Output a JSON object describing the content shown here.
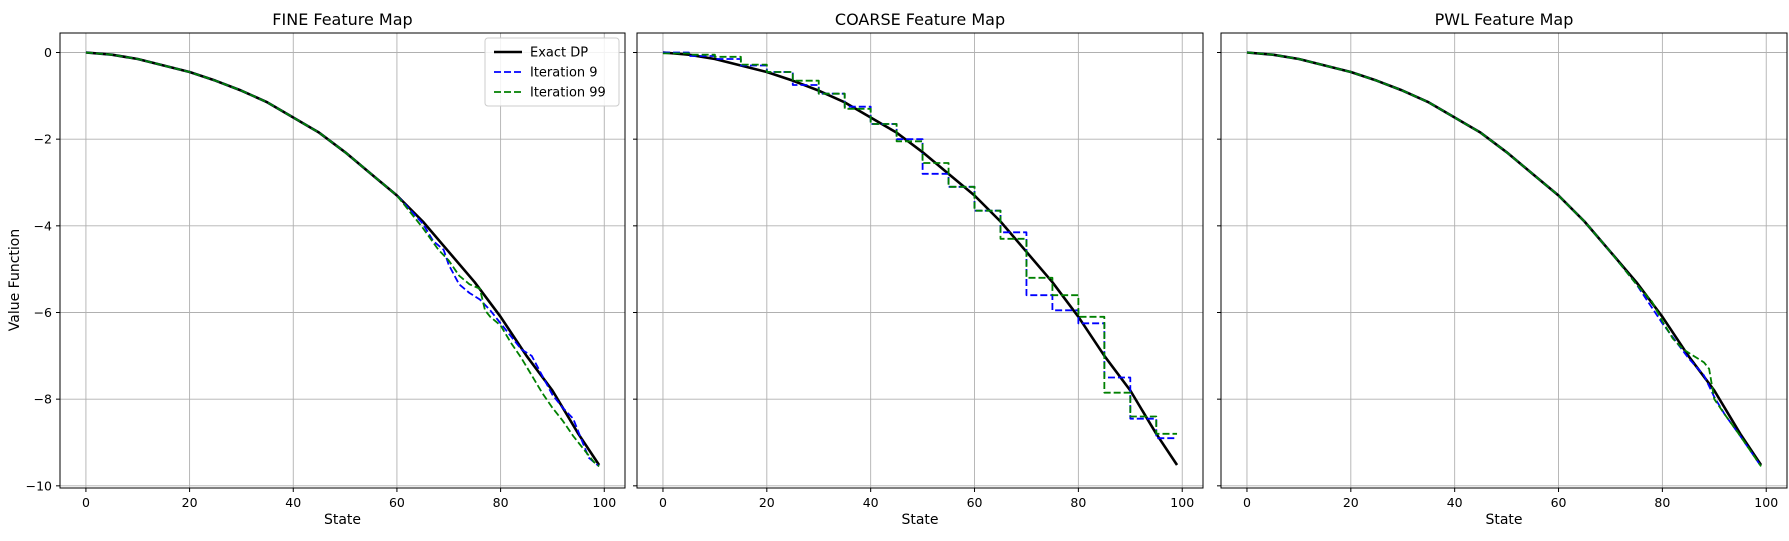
{
  "colors": {
    "exact": "#000000",
    "iter9": "#0000ff",
    "iter99": "#008000",
    "grid": "#b0b0b0",
    "axes": "#000000",
    "background": "#ffffff"
  },
  "figure": {
    "ylabel": "Value Function"
  },
  "chart_data": [
    {
      "type": "line",
      "title": "FINE Feature Map",
      "xlabel": "State",
      "ylabel": "Value Function",
      "xlim": [
        -5,
        104
      ],
      "ylim": [
        -10.05,
        0.45
      ],
      "xticks": [
        0,
        20,
        40,
        60,
        80,
        100
      ],
      "xtick_labels": [
        "0",
        "20",
        "40",
        "60",
        "80",
        "100"
      ],
      "yticks": [
        0,
        -2,
        -4,
        -6,
        -8,
        -10
      ],
      "ytick_labels": [
        "0",
        "−2",
        "−4",
        "−6",
        "−8",
        "−10"
      ],
      "show_yticklabels": true,
      "grid": true,
      "legend": {
        "show": true,
        "position": "top-right",
        "entries": [
          "Exact DP",
          "Iteration 9",
          "Iteration 99"
        ]
      },
      "series": [
        {
          "name": "Exact DP",
          "style": "solid",
          "x": [
            0,
            5,
            10,
            15,
            20,
            25,
            30,
            35,
            40,
            45,
            50,
            55,
            60,
            65,
            70,
            75,
            80,
            85,
            90,
            95,
            99
          ],
          "y": [
            0,
            -0.05,
            -0.15,
            -0.3,
            -0.45,
            -0.65,
            -0.88,
            -1.15,
            -1.5,
            -1.85,
            -2.3,
            -2.8,
            -3.3,
            -3.9,
            -4.6,
            -5.3,
            -6.1,
            -7.0,
            -7.8,
            -8.8,
            -9.52
          ]
        },
        {
          "name": "Iteration 9",
          "style": "dashed",
          "x": [
            0,
            5,
            10,
            15,
            20,
            25,
            30,
            35,
            40,
            45,
            50,
            55,
            60,
            65,
            67,
            69,
            70,
            72,
            74,
            76,
            78,
            80,
            82,
            84,
            86,
            88,
            90,
            92,
            94,
            96,
            97,
            98,
            99
          ],
          "y": [
            0,
            -0.05,
            -0.15,
            -0.3,
            -0.45,
            -0.65,
            -0.88,
            -1.15,
            -1.5,
            -1.85,
            -2.3,
            -2.8,
            -3.3,
            -3.95,
            -4.35,
            -4.55,
            -4.9,
            -5.35,
            -5.55,
            -5.7,
            -5.95,
            -6.25,
            -6.55,
            -6.85,
            -7.0,
            -7.45,
            -7.9,
            -8.2,
            -8.45,
            -9.05,
            -9.35,
            -9.45,
            -9.55
          ]
        },
        {
          "name": "Iteration 99",
          "style": "dashed",
          "x": [
            0,
            5,
            10,
            15,
            20,
            25,
            30,
            35,
            40,
            45,
            50,
            55,
            60,
            65,
            68,
            70,
            72,
            74,
            76,
            77,
            78,
            80,
            82,
            84,
            86,
            88,
            90,
            92,
            94,
            96,
            97,
            98,
            99
          ],
          "y": [
            0,
            -0.05,
            -0.15,
            -0.3,
            -0.45,
            -0.65,
            -0.88,
            -1.15,
            -1.5,
            -1.85,
            -2.3,
            -2.8,
            -3.3,
            -4.05,
            -4.55,
            -4.8,
            -5.15,
            -5.35,
            -5.45,
            -5.95,
            -6.1,
            -6.3,
            -6.7,
            -7.05,
            -7.45,
            -7.85,
            -8.2,
            -8.5,
            -8.85,
            -9.15,
            -9.3,
            -9.45,
            -9.55
          ]
        }
      ]
    },
    {
      "type": "line",
      "title": "COARSE Feature Map",
      "xlabel": "State",
      "ylabel": "",
      "xlim": [
        -5,
        104
      ],
      "ylim": [
        -10.05,
        0.45
      ],
      "xticks": [
        0,
        20,
        40,
        60,
        80,
        100
      ],
      "xtick_labels": [
        "0",
        "20",
        "40",
        "60",
        "80",
        "100"
      ],
      "yticks": [
        0,
        -2,
        -4,
        -6,
        -8,
        -10
      ],
      "ytick_labels": [
        "",
        "",
        "",
        "",
        "",
        ""
      ],
      "show_yticklabels": false,
      "grid": true,
      "legend": {
        "show": false,
        "position": "top-right",
        "entries": []
      },
      "series": [
        {
          "name": "Exact DP",
          "style": "solid",
          "x": [
            0,
            5,
            10,
            15,
            20,
            25,
            30,
            35,
            40,
            45,
            50,
            55,
            60,
            65,
            70,
            75,
            80,
            85,
            90,
            95,
            99
          ],
          "y": [
            0,
            -0.05,
            -0.15,
            -0.3,
            -0.45,
            -0.65,
            -0.88,
            -1.15,
            -1.5,
            -1.85,
            -2.3,
            -2.8,
            -3.3,
            -3.9,
            -4.6,
            -5.3,
            -6.1,
            -7.0,
            -7.8,
            -8.8,
            -9.52
          ]
        },
        {
          "name": "Iteration 9",
          "style": "dashed",
          "x": [
            0,
            5,
            5,
            10,
            10,
            15,
            15,
            20,
            20,
            25,
            25,
            30,
            30,
            35,
            35,
            40,
            40,
            45,
            45,
            50,
            50,
            55,
            55,
            60,
            60,
            65,
            65,
            70,
            70,
            75,
            75,
            80,
            80,
            85,
            85,
            90,
            90,
            95,
            95,
            99
          ],
          "y": [
            0,
            0,
            -0.08,
            -0.08,
            -0.15,
            -0.15,
            -0.3,
            -0.3,
            -0.45,
            -0.45,
            -0.75,
            -0.75,
            -0.95,
            -0.95,
            -1.25,
            -1.25,
            -1.65,
            -1.65,
            -2.0,
            -2.0,
            -2.8,
            -2.8,
            -3.1,
            -3.1,
            -3.65,
            -3.65,
            -4.15,
            -4.15,
            -5.6,
            -5.6,
            -5.95,
            -5.95,
            -6.25,
            -6.25,
            -7.5,
            -7.5,
            -8.45,
            -8.45,
            -8.9,
            -8.9
          ]
        },
        {
          "name": "Iteration 99",
          "style": "dashed",
          "x": [
            0,
            5,
            5,
            10,
            10,
            15,
            15,
            20,
            20,
            25,
            25,
            30,
            30,
            35,
            35,
            40,
            40,
            45,
            45,
            50,
            50,
            55,
            55,
            60,
            60,
            65,
            65,
            70,
            70,
            75,
            75,
            80,
            80,
            85,
            85,
            90,
            90,
            95,
            95,
            99
          ],
          "y": [
            -0.02,
            -0.02,
            -0.05,
            -0.05,
            -0.1,
            -0.1,
            -0.28,
            -0.28,
            -0.45,
            -0.45,
            -0.65,
            -0.65,
            -0.95,
            -0.95,
            -1.3,
            -1.3,
            -1.65,
            -1.65,
            -2.05,
            -2.05,
            -2.55,
            -2.55,
            -3.1,
            -3.1,
            -3.65,
            -3.65,
            -4.3,
            -4.3,
            -5.2,
            -5.2,
            -5.6,
            -5.6,
            -6.1,
            -6.1,
            -7.85,
            -7.85,
            -8.4,
            -8.4,
            -8.8,
            -8.8
          ]
        }
      ]
    },
    {
      "type": "line",
      "title": "PWL Feature Map",
      "xlabel": "State",
      "ylabel": "",
      "xlim": [
        -5,
        104
      ],
      "ylim": [
        -10.05,
        0.45
      ],
      "xticks": [
        0,
        20,
        40,
        60,
        80,
        100
      ],
      "xtick_labels": [
        "0",
        "20",
        "40",
        "60",
        "80",
        "100"
      ],
      "yticks": [
        0,
        -2,
        -4,
        -6,
        -8,
        -10
      ],
      "ytick_labels": [
        "",
        "",
        "",
        "",
        "",
        ""
      ],
      "show_yticklabels": false,
      "grid": true,
      "legend": {
        "show": false,
        "position": "top-right",
        "entries": []
      },
      "series": [
        {
          "name": "Exact DP",
          "style": "solid",
          "x": [
            0,
            5,
            10,
            15,
            20,
            25,
            30,
            35,
            40,
            45,
            50,
            55,
            60,
            65,
            70,
            75,
            80,
            85,
            90,
            95,
            99
          ],
          "y": [
            0,
            -0.05,
            -0.15,
            -0.3,
            -0.45,
            -0.65,
            -0.88,
            -1.15,
            -1.5,
            -1.85,
            -2.3,
            -2.8,
            -3.3,
            -3.9,
            -4.6,
            -5.3,
            -6.1,
            -7.0,
            -7.8,
            -8.8,
            -9.52
          ]
        },
        {
          "name": "Iteration 9",
          "style": "dashed",
          "x": [
            0,
            5,
            10,
            15,
            20,
            25,
            30,
            35,
            40,
            45,
            50,
            55,
            60,
            65,
            70,
            75,
            80,
            85,
            88,
            90,
            92,
            95,
            97,
            99
          ],
          "y": [
            0,
            -0.05,
            -0.15,
            -0.3,
            -0.45,
            -0.65,
            -0.88,
            -1.15,
            -1.5,
            -1.85,
            -2.3,
            -2.8,
            -3.3,
            -3.9,
            -4.6,
            -5.35,
            -6.25,
            -7.05,
            -7.45,
            -7.95,
            -8.35,
            -8.85,
            -9.2,
            -9.55
          ]
        },
        {
          "name": "Iteration 99",
          "style": "dashed",
          "x": [
            0,
            5,
            10,
            15,
            20,
            25,
            30,
            35,
            40,
            45,
            50,
            55,
            60,
            65,
            70,
            75,
            78,
            80,
            82,
            84,
            86,
            88,
            89,
            90,
            92,
            95,
            97,
            99
          ],
          "y": [
            0,
            -0.05,
            -0.15,
            -0.3,
            -0.45,
            -0.65,
            -0.88,
            -1.15,
            -1.5,
            -1.85,
            -2.3,
            -2.8,
            -3.3,
            -3.9,
            -4.6,
            -5.35,
            -5.75,
            -6.2,
            -6.6,
            -6.85,
            -7.0,
            -7.15,
            -7.3,
            -8.0,
            -8.35,
            -8.85,
            -9.2,
            -9.55
          ]
        }
      ]
    }
  ]
}
